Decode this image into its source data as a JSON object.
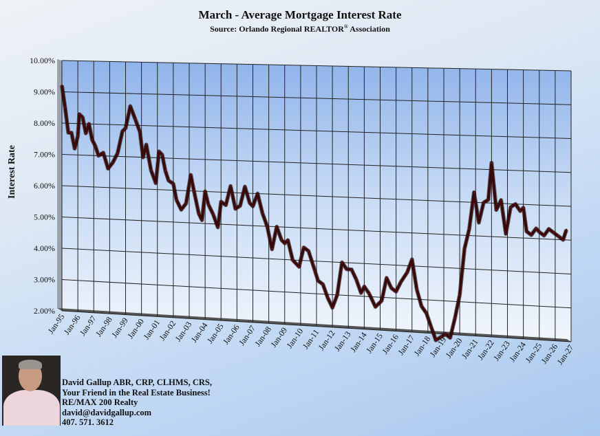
{
  "chart_data": {
    "type": "line",
    "title": "March - Average Mortgage Interest Rate",
    "subtitle": "Source: Orlando Regional REALTOR® Association",
    "subtitle_main": "Source: Orlando Regional REALTOR",
    "subtitle_sup": "®",
    "subtitle_end": " Association",
    "xlabel": "",
    "ylabel": "Interest Rate",
    "ylim": [
      2,
      10
    ],
    "yticks": [
      "2.00%",
      "3.00%",
      "4.00%",
      "5.00%",
      "6.00%",
      "7.00%",
      "8.00%",
      "9.00%",
      "10.00%"
    ],
    "xticks": [
      "Jan-95",
      "Jan-96",
      "Jan-97",
      "Jan-98",
      "Jan-99",
      "Jan-00",
      "Jan-01",
      "Jan-02",
      "Jan-03",
      "Jan-04",
      "Jan-05",
      "Jan-06",
      "Jan-07",
      "Jan-08",
      "Jan-09",
      "Jan-10",
      "Jan-11",
      "Jan-12",
      "Jan-13",
      "Jan-14",
      "Jan-15",
      "Jan-16",
      "Jan-17",
      "Jan-18",
      "Jan-19",
      "Jan-20",
      "Jan-21",
      "Jan-22",
      "Jan-23",
      "Jan-24",
      "Jan-25",
      "Jan-26",
      "Jan-27"
    ],
    "grid": true,
    "line_color": "#3a0a0a",
    "series": [
      {
        "name": "Interest Rate",
        "x": [
          1995.0,
          1995.2,
          1995.4,
          1995.6,
          1995.8,
          1996.0,
          1996.1,
          1996.3,
          1996.5,
          1996.7,
          1996.9,
          1997.1,
          1997.3,
          1997.6,
          1997.9,
          1998.2,
          1998.5,
          1998.8,
          1999.0,
          1999.3,
          1999.6,
          1999.9,
          2000.1,
          2000.3,
          2000.6,
          2000.9,
          2001.1,
          2001.3,
          2001.5,
          2001.7,
          2002.0,
          2002.2,
          2002.5,
          2002.8,
          2003.1,
          2003.3,
          2003.6,
          2003.8,
          2004.0,
          2004.2,
          2004.5,
          2004.8,
          2005.0,
          2005.3,
          2005.6,
          2005.9,
          2006.2,
          2006.5,
          2006.8,
          2007.0,
          2007.3,
          2007.6,
          2007.9,
          2008.2,
          2008.5,
          2008.8,
          2009.0,
          2009.2,
          2009.5,
          2009.9,
          2010.2,
          2010.5,
          2010.9,
          2011.1,
          2011.4,
          2011.7,
          2012.0,
          2012.3,
          2012.6,
          2012.9,
          2013.2,
          2013.5,
          2013.8,
          2014.0,
          2014.3,
          2014.7,
          2015.1,
          2015.4,
          2015.7,
          2016.0,
          2016.3,
          2016.7,
          2017.0,
          2017.3,
          2017.6,
          2017.9,
          2018.2,
          2018.5,
          2018.8,
          2019.1,
          2019.4,
          2019.7,
          2020.0,
          2020.3,
          2020.6,
          2020.9,
          2021.2,
          2021.5,
          2021.8,
          2022.0,
          2022.3,
          2022.6,
          2022.9,
          2023.2,
          2023.5,
          2023.8,
          2024.0,
          2024.2,
          2024.5,
          2024.8,
          2025.0,
          2025.3,
          2025.6,
          2025.9,
          2026.2,
          2026.5,
          2026.7
        ],
        "values": [
          9.2,
          8.5,
          7.7,
          7.7,
          7.2,
          7.6,
          8.3,
          8.2,
          7.7,
          8.0,
          7.5,
          7.3,
          7.0,
          7.1,
          6.6,
          6.8,
          7.1,
          7.8,
          7.9,
          8.6,
          8.2,
          7.8,
          7.0,
          7.4,
          6.6,
          6.2,
          7.2,
          7.1,
          6.6,
          6.3,
          6.2,
          5.7,
          5.4,
          5.6,
          6.5,
          6.0,
          5.3,
          5.1,
          6.0,
          5.6,
          5.3,
          4.9,
          5.7,
          5.6,
          6.2,
          5.5,
          5.6,
          6.2,
          5.7,
          5.6,
          6.0,
          5.4,
          5.0,
          4.3,
          5.0,
          4.6,
          4.5,
          4.6,
          4.0,
          3.8,
          4.4,
          4.3,
          3.7,
          3.4,
          3.3,
          2.9,
          2.6,
          3.0,
          4.0,
          3.8,
          3.8,
          3.5,
          3.1,
          3.3,
          3.1,
          2.7,
          2.9,
          3.6,
          3.3,
          3.2,
          3.5,
          3.8,
          4.2,
          3.3,
          2.8,
          2.6,
          2.2,
          1.8,
          1.9,
          2.0,
          1.9,
          2.5,
          3.2,
          4.6,
          5.2,
          6.3,
          5.4,
          6.0,
          6.1,
          7.2,
          5.8,
          6.1,
          5.1,
          5.9,
          6.0,
          5.8,
          5.9,
          5.2,
          5.1,
          5.3,
          5.2,
          5.1,
          5.3,
          5.2,
          5.1,
          5.0,
          5.3
        ]
      }
    ]
  },
  "contact": {
    "line1": "David Gallup  ABR, CRP, CLHMS, CRS,",
    "line2": "Your Friend in the Real Estate Business!",
    "line3": "RE/MAX 200 Realty",
    "line4": "david@davidgallup.com",
    "line5": "407. 571. 3612"
  }
}
